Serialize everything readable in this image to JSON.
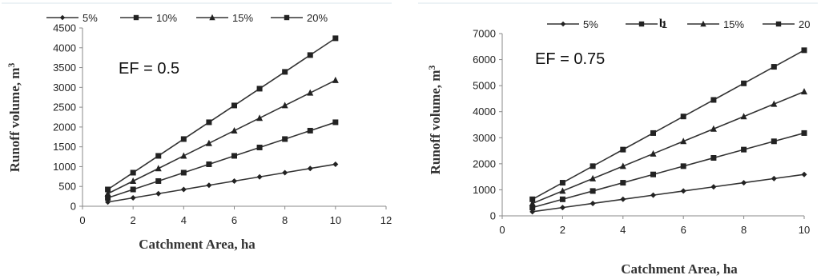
{
  "chart_data": [
    {
      "type": "line",
      "panel": "a",
      "annotation": "EF = 0.5",
      "xlabel": "Catchment Area, ha",
      "ylabel": "Runoff volume, m3",
      "xlim": [
        0,
        12
      ],
      "ylim": [
        0,
        4500
      ],
      "xticks": [
        0,
        2,
        4,
        6,
        8,
        10,
        12
      ],
      "yticks": [
        0,
        500,
        1000,
        1500,
        2000,
        2500,
        3000,
        3500,
        4000,
        4500
      ],
      "grid": false,
      "legend": "top",
      "x": [
        1,
        2,
        3,
        4,
        5,
        6,
        7,
        8,
        9,
        10
      ],
      "series": [
        {
          "name": "5%",
          "marker": "diamond",
          "values": [
            106,
            212,
            318,
            424,
            530,
            636,
            742,
            848,
            954,
            1060
          ]
        },
        {
          "name": "10%",
          "marker": "square",
          "values": [
            212,
            424,
            636,
            848,
            1060,
            1272,
            1484,
            1696,
            1908,
            2120
          ]
        },
        {
          "name": "15%",
          "marker": "triangle",
          "values": [
            318,
            636,
            954,
            1272,
            1590,
            1908,
            2226,
            2544,
            2862,
            3180
          ]
        },
        {
          "name": "20%",
          "marker": "square",
          "values": [
            424,
            848,
            1272,
            1696,
            2120,
            2544,
            2968,
            3392,
            3816,
            4240
          ]
        }
      ]
    },
    {
      "type": "line",
      "panel": "b",
      "annotation": "EF = 0.75",
      "xlabel": "Catchment Area, ha",
      "ylabel": "Runoff volume, m3",
      "xlim": [
        0,
        10
      ],
      "ylim": [
        0,
        7000
      ],
      "xticks": [
        0,
        2,
        4,
        6,
        8,
        10
      ],
      "yticks": [
        0,
        1000,
        2000,
        3000,
        4000,
        5000,
        6000,
        7000
      ],
      "grid": false,
      "legend": "top",
      "x": [
        1,
        2,
        3,
        4,
        5,
        6,
        7,
        8,
        9,
        10
      ],
      "series": [
        {
          "name": "5%",
          "marker": "diamond",
          "values": [
            159,
            318,
            477,
            636,
            795,
            954,
            1113,
            1272,
            1431,
            1590
          ]
        },
        {
          "name": "1",
          "marker": "square",
          "values": [
            318,
            636,
            954,
            1272,
            1590,
            1908,
            2226,
            2544,
            2862,
            3180
          ]
        },
        {
          "name": "15%",
          "marker": "triangle",
          "values": [
            477,
            954,
            1431,
            1908,
            2385,
            2862,
            3339,
            3816,
            4293,
            4770
          ]
        },
        {
          "name": "20",
          "marker": "square",
          "values": [
            636,
            1272,
            1908,
            2544,
            3180,
            3816,
            4452,
            5088,
            5724,
            6360
          ]
        }
      ]
    }
  ]
}
